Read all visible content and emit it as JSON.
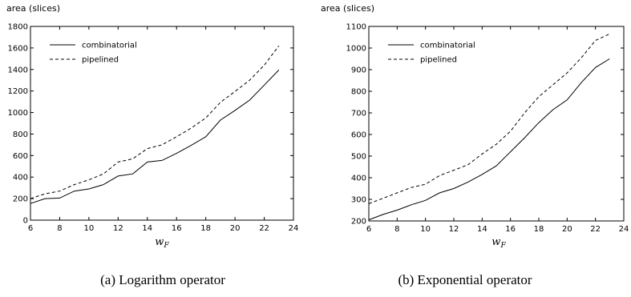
{
  "chart_data": [
    {
      "type": "line",
      "caption": "(a) Logarithm operator",
      "ylabel": "area (slices)",
      "xlabel": "w_F",
      "xlim": [
        6,
        24
      ],
      "ylim": [
        0,
        1800
      ],
      "xticks": [
        6,
        8,
        10,
        12,
        14,
        16,
        18,
        20,
        22,
        24
      ],
      "yticks": [
        0,
        200,
        400,
        600,
        800,
        1000,
        1200,
        1400,
        1600,
        1800
      ],
      "legend_position": "top-left",
      "grid": false,
      "series": [
        {
          "name": "combinatorial",
          "style": "solid",
          "x": [
            6,
            7,
            8,
            9,
            10,
            11,
            12,
            13,
            14,
            15,
            16,
            17,
            18,
            19,
            20,
            21,
            22,
            23
          ],
          "y": [
            155,
            200,
            205,
            270,
            290,
            330,
            410,
            430,
            540,
            555,
            620,
            695,
            775,
            930,
            1020,
            1115,
            1255,
            1395
          ]
        },
        {
          "name": "pipelined",
          "style": "dashed",
          "x": [
            6,
            7,
            8,
            9,
            10,
            11,
            12,
            13,
            14,
            15,
            16,
            17,
            18,
            19,
            20,
            21,
            22,
            23
          ],
          "y": [
            200,
            245,
            270,
            330,
            375,
            430,
            540,
            570,
            665,
            700,
            775,
            855,
            950,
            1095,
            1195,
            1300,
            1440,
            1620
          ]
        }
      ]
    },
    {
      "type": "line",
      "caption": "(b) Exponential operator",
      "ylabel": "area (slices)",
      "xlabel": "w_F",
      "xlim": [
        6,
        24
      ],
      "ylim": [
        200,
        1100
      ],
      "xticks": [
        6,
        8,
        10,
        12,
        14,
        16,
        18,
        20,
        22,
        24
      ],
      "yticks": [
        200,
        300,
        400,
        500,
        600,
        700,
        800,
        900,
        1000,
        1100
      ],
      "legend_position": "top-left",
      "grid": false,
      "series": [
        {
          "name": "combinatorial",
          "style": "solid",
          "x": [
            6,
            7,
            8,
            9,
            10,
            11,
            12,
            13,
            14,
            15,
            16,
            17,
            18,
            19,
            20,
            21,
            22,
            23
          ],
          "y": [
            205,
            230,
            250,
            275,
            295,
            330,
            350,
            380,
            415,
            455,
            520,
            585,
            655,
            715,
            760,
            840,
            910,
            950
          ]
        },
        {
          "name": "pipelined",
          "style": "dashed",
          "x": [
            6,
            7,
            8,
            9,
            10,
            11,
            12,
            13,
            14,
            15,
            16,
            17,
            18,
            19,
            20,
            21,
            22,
            23
          ],
          "y": [
            280,
            305,
            330,
            355,
            370,
            410,
            435,
            460,
            510,
            555,
            615,
            700,
            775,
            830,
            885,
            955,
            1035,
            1065
          ]
        }
      ]
    }
  ]
}
